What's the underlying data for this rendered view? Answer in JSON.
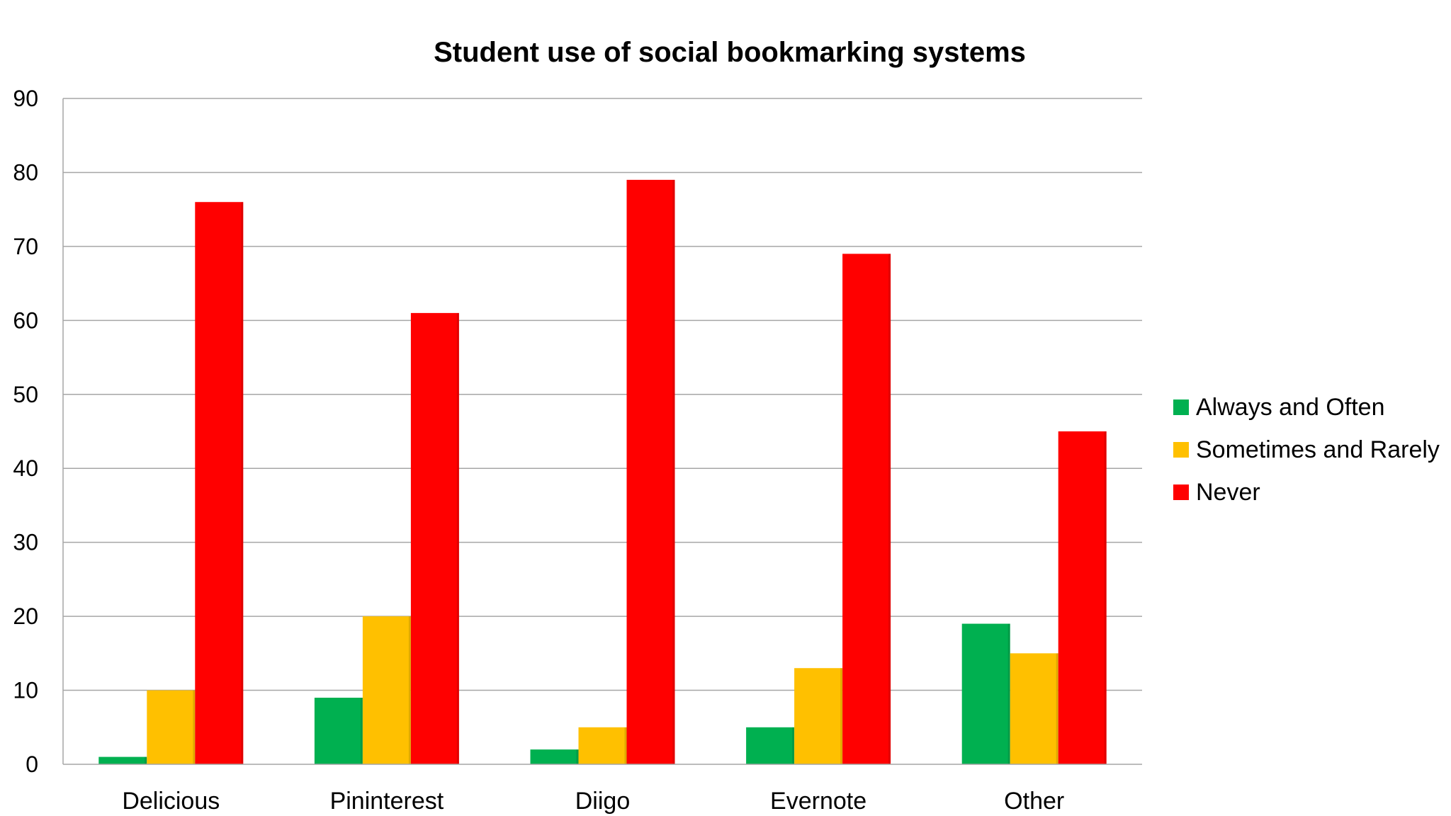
{
  "chart_data": {
    "type": "bar",
    "title": "Student use of  social bookmarking systems",
    "categories": [
      "Delicious",
      "Pininterest",
      "Diigo",
      "Evernote",
      "Other"
    ],
    "series": [
      {
        "name": "Always and Often",
        "color": "#00b050",
        "values": [
          1,
          9,
          2,
          5,
          19
        ]
      },
      {
        "name": "Sometimes and Rarely",
        "color": "#ffc000",
        "values": [
          10,
          20,
          5,
          13,
          15
        ]
      },
      {
        "name": "Never",
        "color": "#ff0000",
        "values": [
          76,
          61,
          79,
          69,
          45
        ]
      }
    ],
    "ylim": [
      0,
      90
    ],
    "yticks": [
      0,
      10,
      20,
      30,
      40,
      50,
      60,
      70,
      80,
      90
    ],
    "grid": true,
    "legend": "right"
  }
}
